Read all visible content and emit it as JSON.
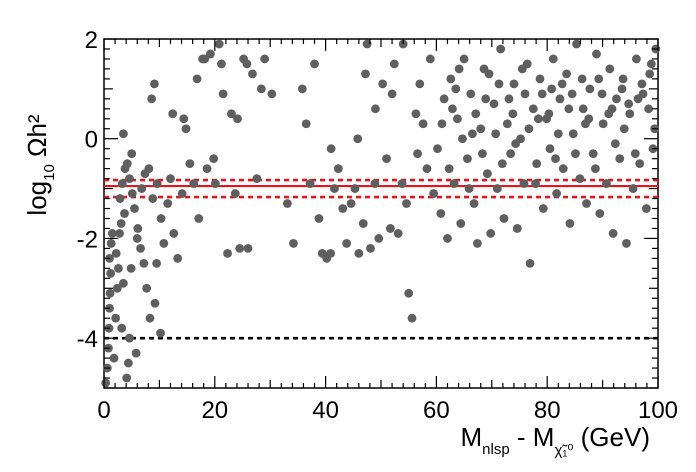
{
  "chart_data": {
    "type": "scatter",
    "title": "",
    "xlabel": {
      "main": "M",
      "sub1": "nlsp",
      "mid": " - M",
      "sub2": "χ̃₁⁰",
      "tail": " (GeV)"
    },
    "ylabel": {
      "main": "log",
      "sub": "10",
      "tail": " Ωh²"
    },
    "xlim": [
      0,
      100
    ],
    "ylim": [
      -5,
      2
    ],
    "x_ticks": [
      "0",
      "20",
      "40",
      "60",
      "80",
      "100"
    ],
    "y_ticks": [
      "-4",
      "-2",
      "0",
      "2"
    ],
    "x_tick_values": [
      0,
      20,
      40,
      60,
      80,
      100
    ],
    "y_tick_values": [
      -4,
      -2,
      0,
      2
    ],
    "grid": false,
    "legend": "none",
    "colors": {
      "points": "#5f5f5f",
      "band": "#e8141c",
      "limit": "#000000"
    },
    "reference_lines": [
      {
        "name": "central",
        "y": -0.95,
        "style": "solid",
        "color": "#e8141c"
      },
      {
        "name": "upper",
        "y": -0.83,
        "style": "dashed",
        "color": "#e8141c"
      },
      {
        "name": "lower",
        "y": -1.17,
        "style": "dashed",
        "color": "#e8141c"
      },
      {
        "name": "lower-limit",
        "y": -4.0,
        "style": "dashed",
        "color": "#000000"
      }
    ],
    "series": [
      {
        "points": [
          [
            0.3,
            -4.9
          ],
          [
            0.6,
            -4.6
          ],
          [
            0.8,
            -4.2
          ],
          [
            0.9,
            -3.8
          ],
          [
            1.0,
            -3.4
          ],
          [
            1.1,
            -3.1
          ],
          [
            1.2,
            -2.7
          ],
          [
            1.0,
            -2.4
          ],
          [
            1.3,
            -2.1
          ],
          [
            1.5,
            -1.9
          ],
          [
            1.8,
            -4.4
          ],
          [
            2.1,
            -3.6
          ],
          [
            2.4,
            -3.0
          ],
          [
            2.6,
            -2.6
          ],
          [
            2.2,
            -2.3
          ],
          [
            2.8,
            -1.9
          ],
          [
            3.1,
            -1.7
          ],
          [
            3.5,
            -2.9
          ],
          [
            3.2,
            -3.8
          ],
          [
            4.1,
            -4.8
          ],
          [
            4.6,
            -4.0
          ],
          [
            4.9,
            -2.6
          ],
          [
            3.7,
            -1.5
          ],
          [
            2.9,
            -1.2
          ],
          [
            3.3,
            -0.9
          ],
          [
            3.8,
            -0.6
          ],
          [
            4.2,
            -0.5
          ],
          [
            4.6,
            -0.8
          ],
          [
            5.1,
            -1.1
          ],
          [
            5.5,
            -1.4
          ],
          [
            6.1,
            -1.8
          ],
          [
            6.6,
            -2.2
          ],
          [
            7.2,
            -2.5
          ],
          [
            7.7,
            -3.0
          ],
          [
            8.3,
            -3.6
          ],
          [
            9.2,
            -3.3
          ],
          [
            9.5,
            -2.5
          ],
          [
            6.8,
            -1.0
          ],
          [
            7.4,
            -0.7
          ],
          [
            8.1,
            -0.6
          ],
          [
            8.8,
            -1.2
          ],
          [
            9.6,
            -0.9
          ],
          [
            10.3,
            -1.6
          ],
          [
            10.8,
            -2.1
          ],
          [
            10.2,
            -3.9
          ],
          [
            3.5,
            0.1
          ],
          [
            5.0,
            -0.3
          ],
          [
            6.0,
            -2.0
          ],
          [
            5.8,
            -4.3
          ],
          [
            4.4,
            -4.5
          ],
          [
            11.5,
            -1.3
          ],
          [
            12.0,
            -0.8
          ],
          [
            12.6,
            -1.9
          ],
          [
            13.3,
            -2.4
          ],
          [
            14.1,
            -1.1
          ],
          [
            14.8,
            0.2
          ],
          [
            15.5,
            -0.5
          ],
          [
            16.2,
            -0.9
          ],
          [
            17.1,
            -1.6
          ],
          [
            17.8,
            1.6
          ],
          [
            18.6,
            -0.6
          ],
          [
            19.2,
            1.7
          ],
          [
            20.1,
            -0.9
          ],
          [
            20.8,
            1.9
          ],
          [
            21.5,
            0.9
          ],
          [
            22.3,
            -2.3
          ],
          [
            23.0,
            0.5
          ],
          [
            23.7,
            -1.1
          ],
          [
            24.5,
            -2.2
          ],
          [
            25.2,
            1.6
          ],
          [
            26.0,
            -2.2
          ],
          [
            26.8,
            1.3
          ],
          [
            27.6,
            -0.8
          ],
          [
            28.4,
            1.0
          ],
          [
            29.0,
            1.6
          ],
          [
            30.3,
            0.9
          ],
          [
            8.6,
            0.8
          ],
          [
            9.1,
            1.1
          ],
          [
            12.4,
            0.5
          ],
          [
            14.4,
            0.4
          ],
          [
            16.8,
            1.2
          ],
          [
            18.2,
            1.6
          ],
          [
            19.8,
            -0.4
          ],
          [
            21.2,
            1.5
          ],
          [
            24.1,
            0.4
          ],
          [
            25.8,
            1.5
          ],
          [
            33.1,
            -1.3
          ],
          [
            34.2,
            -2.1
          ],
          [
            35.8,
            1.0
          ],
          [
            36.5,
            0.3
          ],
          [
            37.2,
            -0.9
          ],
          [
            38.0,
            1.5
          ],
          [
            38.8,
            -1.6
          ],
          [
            39.4,
            -2.3
          ],
          [
            40.2,
            -2.4
          ],
          [
            40.9,
            -2.3
          ],
          [
            41.6,
            -1.0
          ],
          [
            42.3,
            -0.6
          ],
          [
            43.1,
            -1.4
          ],
          [
            43.8,
            -2.1
          ],
          [
            44.6,
            -1.3
          ],
          [
            45.3,
            -1.0
          ],
          [
            46.0,
            -2.3
          ],
          [
            46.8,
            -1.7
          ],
          [
            47.5,
            1.9
          ],
          [
            48.1,
            -2.2
          ],
          [
            48.9,
            -0.9
          ],
          [
            49.6,
            -2.0
          ],
          [
            50.3,
            1.1
          ],
          [
            51.0,
            -0.4
          ],
          [
            51.7,
            -1.8
          ],
          [
            52.4,
            1.5
          ],
          [
            53.1,
            -1.9
          ],
          [
            53.8,
            -0.9
          ],
          [
            54.6,
            -1.3
          ],
          [
            55.0,
            -3.1
          ],
          [
            55.6,
            -3.6
          ],
          [
            56.3,
            0.5
          ],
          [
            57.0,
            1.1
          ],
          [
            57.6,
            0.3
          ],
          [
            58.3,
            -0.6
          ],
          [
            58.9,
            1.6
          ],
          [
            59.5,
            -1.1
          ],
          [
            45.8,
            0.0
          ],
          [
            49.0,
            0.6
          ],
          [
            52.0,
            0.9
          ],
          [
            54.0,
            1.9
          ],
          [
            56.6,
            -0.3
          ],
          [
            41.0,
            -0.2
          ],
          [
            47.2,
            1.3
          ],
          [
            60.2,
            -0.2
          ],
          [
            60.8,
            -1.5
          ],
          [
            61.4,
            0.8
          ],
          [
            62.0,
            -2.0
          ],
          [
            62.6,
            1.2
          ],
          [
            63.2,
            -0.9
          ],
          [
            63.8,
            0.4
          ],
          [
            64.4,
            -1.7
          ],
          [
            65.0,
            1.6
          ],
          [
            65.6,
            -0.4
          ],
          [
            66.2,
            0.9
          ],
          [
            66.8,
            -1.3
          ],
          [
            67.4,
            -2.1
          ],
          [
            68.0,
            0.2
          ],
          [
            68.6,
            1.4
          ],
          [
            69.2,
            -0.7
          ],
          [
            69.8,
            -1.9
          ],
          [
            70.4,
            0.7
          ],
          [
            71.0,
            -1.0
          ],
          [
            71.6,
            1.8
          ],
          [
            72.2,
            -1.6
          ],
          [
            72.8,
            0.3
          ],
          [
            73.4,
            -0.3
          ],
          [
            74.0,
            1.1
          ],
          [
            74.6,
            -1.8
          ],
          [
            75.2,
            0.0
          ],
          [
            75.8,
            -0.9
          ],
          [
            76.4,
            1.5
          ],
          [
            76.9,
            -2.5
          ],
          [
            77.5,
            0.6
          ],
          [
            78.1,
            -0.5
          ],
          [
            78.7,
            1.2
          ],
          [
            79.3,
            -1.4
          ],
          [
            79.9,
            0.4
          ],
          [
            80.5,
            -0.2
          ],
          [
            81.1,
            1.6
          ],
          [
            81.7,
            -1.1
          ],
          [
            82.3,
            0.8
          ],
          [
            82.9,
            -0.6
          ],
          [
            83.5,
            1.3
          ],
          [
            84.1,
            -1.7
          ],
          [
            84.7,
            0.1
          ],
          [
            85.3,
            1.9
          ],
          [
            85.9,
            -0.8
          ],
          [
            86.5,
            0.6
          ],
          [
            87.1,
            -1.3
          ],
          [
            87.7,
            1.0
          ],
          [
            88.3,
            -0.3
          ],
          [
            88.9,
            1.7
          ],
          [
            89.5,
            -1.5
          ],
          [
            90.1,
            0.3
          ],
          [
            90.7,
            -0.9
          ],
          [
            91.3,
            1.4
          ],
          [
            91.9,
            -1.9
          ],
          [
            92.5,
            0.8
          ],
          [
            93.1,
            -0.4
          ],
          [
            93.7,
            1.2
          ],
          [
            94.3,
            -2.1
          ],
          [
            94.9,
            0.5
          ],
          [
            95.5,
            -1.0
          ],
          [
            96.1,
            1.6
          ],
          [
            96.7,
            -0.5
          ],
          [
            97.3,
            0.9
          ],
          [
            97.9,
            -1.4
          ],
          [
            98.5,
            1.3
          ],
          [
            99.1,
            -0.2
          ],
          [
            99.6,
            1.8
          ],
          [
            61.0,
            0.3
          ],
          [
            62.3,
            -0.6
          ],
          [
            63.5,
            1.0
          ],
          [
            64.7,
            0.0
          ],
          [
            65.9,
            -1.0
          ],
          [
            67.1,
            0.5
          ],
          [
            68.3,
            -0.3
          ],
          [
            69.5,
            1.3
          ],
          [
            70.7,
            0.1
          ],
          [
            71.9,
            -0.5
          ],
          [
            73.1,
            0.8
          ],
          [
            74.3,
            -0.1
          ],
          [
            75.5,
            1.4
          ],
          [
            76.7,
            0.2
          ],
          [
            77.9,
            -0.9
          ],
          [
            79.1,
            0.9
          ],
          [
            80.3,
            0.5
          ],
          [
            81.5,
            -0.4
          ],
          [
            82.7,
            1.1
          ],
          [
            83.9,
            0.6
          ],
          [
            85.1,
            -0.3
          ],
          [
            86.3,
            1.2
          ],
          [
            87.5,
            0.4
          ],
          [
            88.7,
            -0.6
          ],
          [
            89.9,
            0.9
          ],
          [
            91.1,
            0.5
          ],
          [
            92.3,
            -0.1
          ],
          [
            93.5,
            1.0
          ],
          [
            94.7,
            0.7
          ],
          [
            95.9,
            -0.3
          ],
          [
            97.1,
            1.1
          ],
          [
            98.3,
            0.6
          ],
          [
            99.4,
            0.2
          ],
          [
            84.5,
            0.9
          ],
          [
            86.9,
            0.3
          ],
          [
            89.3,
            1.2
          ],
          [
            91.7,
            0.6
          ],
          [
            93.9,
            0.2
          ],
          [
            96.4,
            0.8
          ],
          [
            98.8,
            1.5
          ],
          [
            82.0,
            0.1
          ],
          [
            80.8,
            1.0
          ],
          [
            78.4,
            0.4
          ],
          [
            76.0,
            0.9
          ],
          [
            73.8,
            0.5
          ],
          [
            71.3,
            1.1
          ],
          [
            68.9,
            0.8
          ],
          [
            66.5,
            0.1
          ],
          [
            64.1,
            1.4
          ],
          [
            62.9,
            0.6
          ]
        ]
      }
    ]
  }
}
